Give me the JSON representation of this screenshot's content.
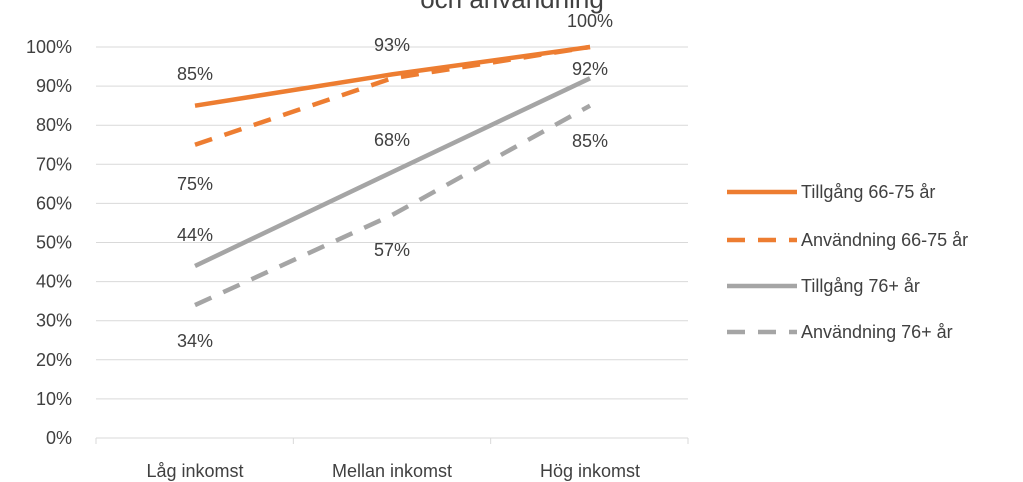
{
  "chart_data": {
    "type": "line",
    "title": "och användning",
    "categories": [
      "Låg inkomst",
      "Mellan inkomst",
      "Hög inkomst"
    ],
    "ylim": [
      0,
      100
    ],
    "yticks": [
      "0%",
      "10%",
      "20%",
      "30%",
      "40%",
      "50%",
      "60%",
      "70%",
      "80%",
      "90%",
      "100%"
    ],
    "grid": true,
    "legend_position": "right",
    "series": [
      {
        "name": "Tillgång 66-75 år",
        "values": [
          85,
          93,
          100
        ],
        "labels": [
          "85%",
          "93%",
          "100%"
        ],
        "color": "#ED7D31",
        "dashed": false
      },
      {
        "name": "Användning 66-75 år",
        "values": [
          75,
          92,
          100
        ],
        "labels": [
          "75%",
          "",
          ""
        ],
        "color": "#ED7D31",
        "dashed": true
      },
      {
        "name": "Tillgång 76+ år",
        "values": [
          44,
          68,
          92
        ],
        "labels": [
          "44%",
          "68%",
          "92%"
        ],
        "color": "#A5A5A5",
        "dashed": false
      },
      {
        "name": "Användning 76+ år",
        "values": [
          34,
          57,
          85
        ],
        "labels": [
          "34%",
          "57%",
          "85%"
        ],
        "color": "#A5A5A5",
        "dashed": true
      }
    ]
  }
}
